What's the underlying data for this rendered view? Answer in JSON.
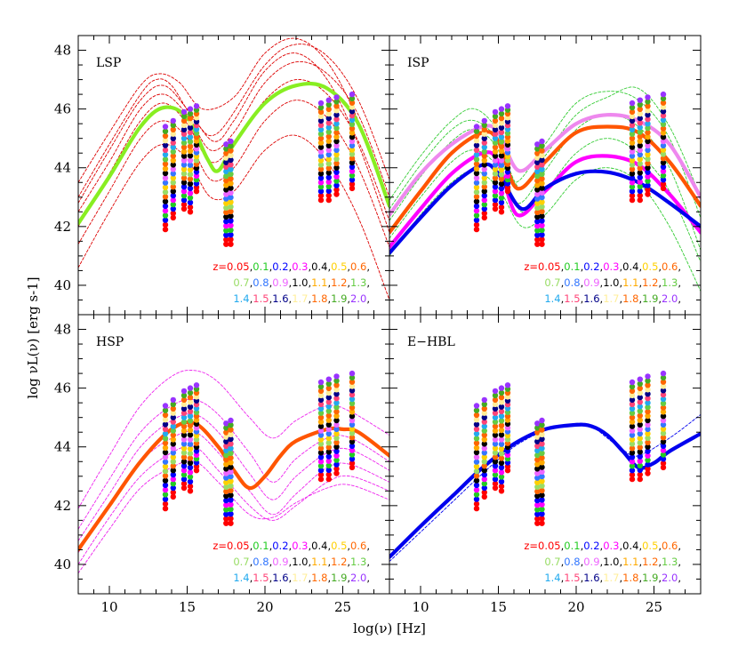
{
  "figure": {
    "xlabel": "log(ν) [Hz]",
    "ylabel": "log νL(ν) [erg s-1]"
  },
  "axes": {
    "xlim": [
      8,
      28
    ],
    "ylim": [
      39,
      48.5
    ],
    "xticks": [
      10,
      15,
      20,
      25
    ],
    "yticks": [
      40,
      42,
      44,
      46,
      48
    ]
  },
  "legend": {
    "rows": [
      [
        {
          "text": "z=0.05",
          "color": "#ff0000"
        },
        {
          "text": "0.1",
          "color": "#22cc22"
        },
        {
          "text": "0.2",
          "color": "#0000ff"
        },
        {
          "text": "0.3",
          "color": "#ff00ff"
        },
        {
          "text": "0.4",
          "color": "#000000"
        },
        {
          "text": "0.5",
          "color": "#ffd000"
        },
        {
          "text": "0.6",
          "color": "#ff6600"
        }
      ],
      [
        {
          "text": "0.7",
          "color": "#99dd66"
        },
        {
          "text": "0.8",
          "color": "#3377ff"
        },
        {
          "text": "0.9",
          "color": "#ee66ff"
        },
        {
          "text": "1.0",
          "color": "#000000"
        },
        {
          "text": "1.1",
          "color": "#ffaa00"
        },
        {
          "text": "1.2",
          "color": "#ff6600"
        },
        {
          "text": "1.3",
          "color": "#66cc44"
        }
      ],
      [
        {
          "text": "1.4",
          "color": "#22aaee"
        },
        {
          "text": "1.5",
          "color": "#ff4477"
        },
        {
          "text": "1.6",
          "color": "#000088"
        },
        {
          "text": "1.7",
          "color": "#ffee99"
        },
        {
          "text": "1.8",
          "color": "#ff6600"
        },
        {
          "text": "1.9",
          "color": "#44aa22"
        },
        {
          "text": "2.0",
          "color": "#9933ff"
        }
      ]
    ]
  },
  "chart_data": [
    {
      "type": "line",
      "panel_label": "LSP",
      "series": [
        {
          "style": "thick",
          "color": "#88ee22",
          "x": [
            8,
            10,
            12,
            13.5,
            15,
            16.3,
            17,
            18,
            20,
            22,
            24,
            26,
            28
          ],
          "y": [
            42.1,
            43.7,
            45.4,
            46.05,
            45.7,
            44.3,
            43.9,
            44.8,
            46.2,
            46.8,
            46.7,
            45.5,
            42.7
          ]
        },
        {
          "style": "dashed",
          "color": "#dd0000",
          "x": [
            8,
            10,
            12,
            13,
            14,
            15.5,
            17,
            20,
            22,
            24,
            26,
            28
          ],
          "y": [
            43,
            44.8,
            46.5,
            47,
            46.8,
            45.6,
            45.2,
            47.5,
            48.2,
            47.8,
            46.3,
            43.6
          ]
        },
        {
          "style": "dashed",
          "color": "#dd0000",
          "x": [
            8,
            10,
            12,
            13.5,
            15,
            16.5,
            18,
            20,
            22,
            24,
            26,
            28
          ],
          "y": [
            42.5,
            44.2,
            46,
            46.5,
            45.8,
            44.6,
            45.2,
            46.9,
            47.6,
            47.2,
            45.8,
            43
          ]
        },
        {
          "style": "dashed",
          "color": "#dd0000",
          "x": [
            8,
            10,
            12,
            13.5,
            15,
            16.5,
            18,
            20,
            22,
            24,
            26,
            28
          ],
          "y": [
            42,
            43.8,
            45.6,
            46.2,
            45.5,
            44.2,
            44.8,
            46.3,
            47,
            46.5,
            44.9,
            42.2
          ]
        },
        {
          "style": "dashed",
          "color": "#dd0000",
          "x": [
            8,
            10,
            12,
            13.5,
            15,
            16.5,
            18,
            20,
            22,
            24,
            26,
            28
          ],
          "y": [
            41.4,
            43.2,
            45,
            45.6,
            45,
            43.6,
            44,
            45.6,
            46.3,
            45.7,
            44,
            41.3
          ]
        },
        {
          "style": "dashed",
          "color": "#dd0000",
          "x": [
            8,
            10,
            12,
            13.5,
            15,
            16.5,
            18,
            20,
            22,
            24,
            26,
            28
          ],
          "y": [
            40.6,
            42.5,
            44.2,
            44.8,
            44.3,
            43,
            43.2,
            44.6,
            45.1,
            44.2,
            42.3,
            39.5
          ]
        },
        {
          "style": "dashed",
          "color": "#dd0000",
          "x": [
            8,
            10,
            12,
            13.2,
            14.5,
            16,
            18,
            20,
            22,
            24,
            26,
            28
          ],
          "y": [
            43.5,
            45.2,
            46.8,
            47.2,
            46.9,
            46,
            46.4,
            47.9,
            48.4,
            47.6,
            45.6,
            42.8
          ]
        },
        {
          "style": "dashed",
          "color": "#dd0000",
          "x": [
            8,
            10,
            12,
            13.5,
            15,
            16.7,
            18,
            20,
            22,
            24,
            26,
            28
          ],
          "y": [
            42.8,
            44.6,
            46.3,
            46.8,
            46,
            44.9,
            45.6,
            47.3,
            47.9,
            47,
            44.8,
            41.8
          ]
        }
      ]
    },
    {
      "type": "line",
      "panel_label": "ISP",
      "series": [
        {
          "style": "thick",
          "color": "#ee88ee",
          "x": [
            8,
            10,
            12,
            14,
            15,
            16.3,
            18,
            20,
            22,
            24,
            26,
            28
          ],
          "y": [
            42.4,
            43.8,
            44.8,
            45.4,
            45.2,
            43.9,
            44.6,
            45.5,
            45.8,
            45.6,
            44.8,
            43
          ]
        },
        {
          "style": "thick",
          "color": "#ff5500",
          "x": [
            8,
            10,
            12,
            14,
            15,
            16.2,
            18,
            20,
            22,
            24,
            26,
            28
          ],
          "y": [
            41.8,
            43.2,
            44.5,
            45.2,
            44.9,
            43.3,
            44.2,
            45.2,
            45.4,
            45.2,
            44.2,
            42.7
          ]
        },
        {
          "style": "thick",
          "color": "#ff00ff",
          "x": [
            8,
            10,
            12,
            14,
            15,
            16.2,
            18,
            20,
            22,
            24,
            26,
            28
          ],
          "y": [
            41.3,
            42.6,
            43.8,
            44.5,
            44.2,
            42.4,
            43.2,
            44.2,
            44.4,
            44.1,
            43.1,
            41.8
          ]
        },
        {
          "style": "thick",
          "color": "#0000ee",
          "x": [
            8,
            10,
            12,
            14,
            15,
            16.5,
            18,
            20,
            22,
            24,
            26,
            28
          ],
          "y": [
            41.1,
            42.3,
            43.4,
            44.1,
            43.8,
            42.6,
            43.3,
            43.8,
            43.85,
            43.5,
            42.8,
            42
          ]
        },
        {
          "style": "dashed",
          "color": "#33cc33",
          "x": [
            8,
            10,
            12,
            13.5,
            15,
            16,
            18,
            20,
            22,
            24,
            26,
            28
          ],
          "y": [
            42.9,
            44.4,
            45.6,
            46,
            45.2,
            43.5,
            44.8,
            46.2,
            46.6,
            46.3,
            45,
            42.3
          ]
        },
        {
          "style": "dashed",
          "color": "#33cc33",
          "x": [
            8,
            10,
            12,
            13.5,
            15,
            16.2,
            18,
            20,
            22,
            24,
            26,
            28
          ],
          "y": [
            42.2,
            43.7,
            44.9,
            45.3,
            44.6,
            42.8,
            43.9,
            45.3,
            45.8,
            45.4,
            44,
            41.2
          ]
        },
        {
          "style": "dashed",
          "color": "#33cc33",
          "x": [
            8,
            10,
            12,
            13.5,
            15,
            16.5,
            18,
            20,
            22,
            24,
            26,
            28
          ],
          "y": [
            41.6,
            43,
            44.2,
            44.6,
            44,
            42.5,
            43.2,
            44.5,
            45,
            44.5,
            43.2,
            40.8
          ]
        },
        {
          "style": "dashed",
          "color": "#33cc33",
          "x": [
            8,
            10,
            12,
            13.5,
            15,
            16.5,
            18,
            20,
            22,
            24,
            26,
            28
          ],
          "y": [
            41,
            42.4,
            43.5,
            43.9,
            43.3,
            42,
            42.4,
            43.6,
            44,
            43.5,
            42,
            39.8
          ]
        },
        {
          "style": "dashed",
          "color": "#33cc33",
          "x": [
            8,
            10,
            12,
            13.5,
            15,
            16.4,
            18,
            20,
            22,
            24,
            26,
            28
          ],
          "y": [
            42.6,
            44.1,
            45.3,
            45.6,
            44.9,
            43.3,
            44.4,
            45.8,
            46.4,
            46.7,
            45.4,
            43
          ]
        }
      ]
    },
    {
      "type": "line",
      "panel_label": "HSP",
      "series": [
        {
          "style": "thick",
          "color": "#ff5500",
          "x": [
            8,
            10,
            12,
            14,
            15.5,
            17,
            18,
            19,
            20,
            21,
            22,
            24,
            25,
            26,
            28
          ],
          "y": [
            40.5,
            42,
            43.5,
            44.6,
            44.8,
            44,
            43.2,
            42.6,
            43,
            43.7,
            44.2,
            44.6,
            44.6,
            44.5,
            43.7
          ]
        },
        {
          "style": "dashed",
          "color": "#ee22ee",
          "x": [
            8,
            10,
            12,
            14,
            15.5,
            17,
            19,
            20.5,
            22,
            24,
            25.5,
            28
          ],
          "y": [
            41.9,
            43.7,
            45.4,
            46.4,
            46.6,
            46.2,
            45,
            44.3,
            44.9,
            45.4,
            45.2,
            44.4
          ]
        },
        {
          "style": "dashed",
          "color": "#ee22ee",
          "x": [
            8,
            10,
            12,
            14,
            15.5,
            17,
            19,
            20.5,
            22,
            24,
            25.5,
            28
          ],
          "y": [
            41.2,
            42.9,
            44.5,
            45.4,
            45.6,
            45.1,
            43.8,
            42.8,
            43.6,
            44.3,
            44.3,
            43.5
          ]
        },
        {
          "style": "dashed",
          "color": "#ee22ee",
          "x": [
            8,
            10,
            12,
            14,
            15.5,
            17,
            19,
            20.5,
            22,
            24,
            25.5,
            28
          ],
          "y": [
            40.8,
            42.4,
            44,
            44.9,
            45.1,
            44.5,
            43.1,
            42.2,
            43,
            43.8,
            43.9,
            43.2
          ]
        },
        {
          "style": "dashed",
          "color": "#ee22ee",
          "x": [
            8,
            10,
            12,
            14,
            15.5,
            17,
            19,
            20.5,
            22,
            24,
            25.5,
            28
          ],
          "y": [
            40.4,
            42,
            43.5,
            44.3,
            44.5,
            43.8,
            42.5,
            41.7,
            42.4,
            43.3,
            43.4,
            42.8
          ]
        },
        {
          "style": "dashed",
          "color": "#ee22ee",
          "x": [
            8,
            10,
            12,
            14,
            15.5,
            17,
            19,
            20.5,
            22,
            24,
            25.5,
            28
          ],
          "y": [
            40,
            41.6,
            43,
            43.8,
            44,
            43.2,
            42,
            41.5,
            42,
            42.8,
            43,
            42.5
          ]
        },
        {
          "style": "dashed",
          "color": "#ee22ee",
          "x": [
            8,
            10,
            12,
            14,
            15.5,
            17,
            19,
            20.5,
            22,
            24,
            25.5,
            28
          ],
          "y": [
            39.7,
            41.2,
            42.6,
            43.3,
            43.5,
            42.8,
            41.7,
            41.6,
            42.1,
            42.6,
            42.7,
            42.2
          ]
        }
      ]
    },
    {
      "type": "line",
      "panel_label": "E−HBL",
      "series": [
        {
          "style": "thick",
          "color": "#0000ee",
          "x": [
            8,
            10,
            12,
            14,
            16,
            18,
            20,
            21,
            22,
            23,
            24,
            25,
            26,
            28
          ],
          "y": [
            40.25,
            41.3,
            42.3,
            43.3,
            44.1,
            44.6,
            44.75,
            44.7,
            44.4,
            43.85,
            43.3,
            43.45,
            43.85,
            44.45
          ]
        },
        {
          "style": "dashed",
          "color": "#0000ee",
          "x": [
            8,
            10,
            12,
            14,
            16,
            18,
            20,
            21,
            22,
            23,
            24,
            26,
            28
          ],
          "y": [
            40.1,
            41.1,
            42.1,
            43.1,
            44,
            44.55,
            44.8,
            44.7,
            44.3,
            43.9,
            43.7,
            44.3,
            45.1
          ]
        }
      ]
    }
  ]
}
